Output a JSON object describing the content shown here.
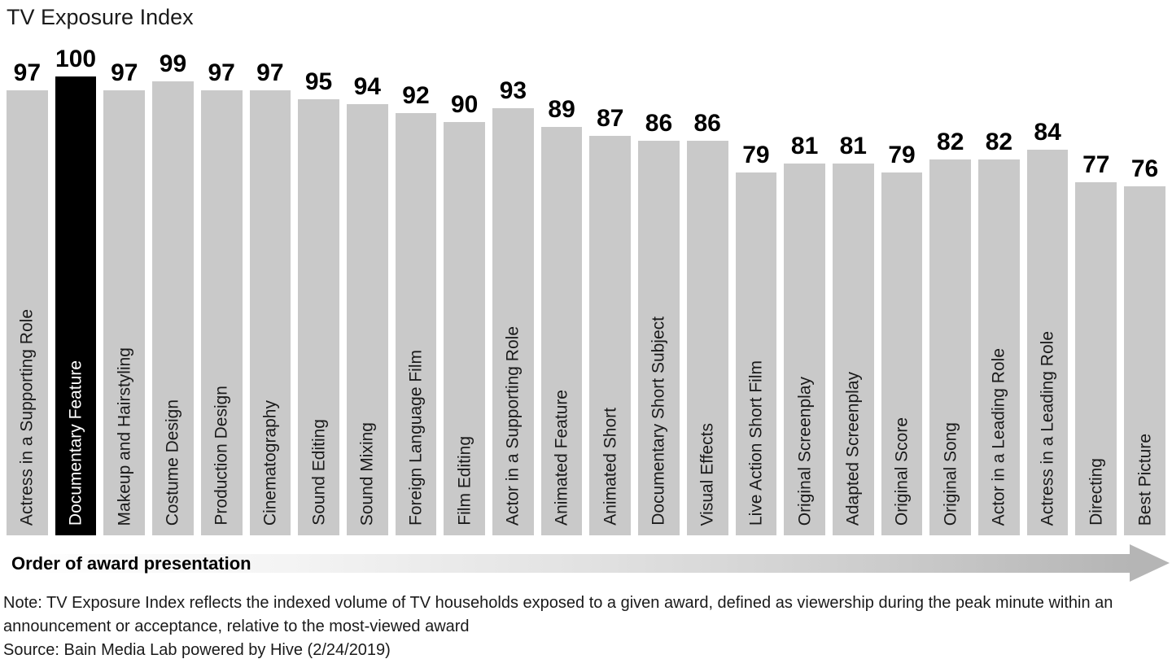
{
  "title": "TV Exposure Index",
  "axis": {
    "label": "Order of award presentation"
  },
  "note": {
    "line1": "Note: TV Exposure Index reflects the indexed volume of TV households exposed to a given award, defined as viewership during the peak minute within an",
    "line2": "announcement or acceptance, relative to the most-viewed award",
    "source": "Source: Bain Media Lab powered by Hive (2/24/2019)"
  },
  "colors": {
    "bar": "#c9c9c9",
    "highlight_bar": "#000000",
    "highlight_label": "#ffffff",
    "arrow": "#b5b5b5"
  },
  "chart_data": {
    "type": "bar",
    "title": "TV Exposure Index",
    "xlabel": "Order of award presentation",
    "ylabel": "TV Exposure Index",
    "ylim": [
      0,
      100
    ],
    "grid": false,
    "legend": "none",
    "value_labels": "above bars",
    "category_label_position": "rotated 90deg inside bar bottom",
    "highlighted_category": "Documentary Feature",
    "categories": [
      "Actress in a Supporting Role",
      "Documentary Feature",
      "Makeup and Hairstyling",
      "Costume Design",
      "Production Design",
      "Cinematography",
      "Sound Editing",
      "Sound Mixing",
      "Foreign Language Film",
      "Film Editing",
      "Actor in a Supporting Role",
      "Animated Feature",
      "Animated Short",
      "Documentary Short Subject",
      "Visual Effects",
      "Live Action Short Film",
      "Original Screenplay",
      "Adapted Screenplay",
      "Original Score",
      "Original Song",
      "Actor in a Leading Role",
      "Actress in a Leading Role",
      "Directing",
      "Best Picture"
    ],
    "values": [
      97,
      100,
      97,
      99,
      97,
      97,
      95,
      94,
      92,
      90,
      93,
      89,
      87,
      86,
      86,
      79,
      81,
      81,
      79,
      82,
      82,
      84,
      77,
      76
    ]
  }
}
